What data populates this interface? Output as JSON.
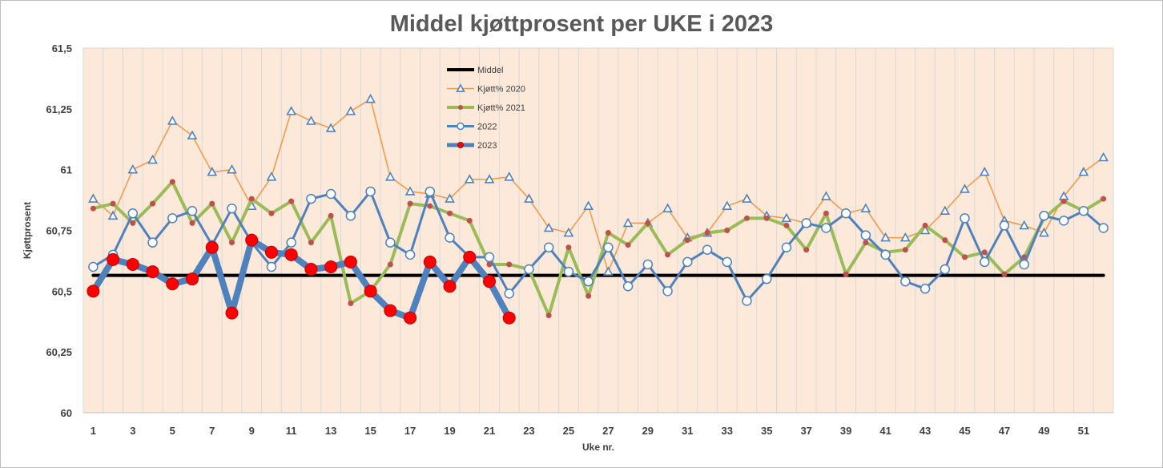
{
  "chart_data": {
    "type": "line",
    "title": "Middel kjøttprosent per UKE i 2023",
    "xlabel": "Uke nr.",
    "ylabel": "Kjøttprosent",
    "ylim": [
      60,
      61.5
    ],
    "xlim": [
      1,
      52
    ],
    "y_ticks": [
      "60",
      "60,25",
      "60,5",
      "60,75",
      "61",
      "61,25",
      "61,5"
    ],
    "y_tick_values": [
      60,
      60.25,
      60.5,
      60.75,
      61,
      61.25,
      61.5
    ],
    "x_ticks": [
      "1",
      "3",
      "5",
      "7",
      "9",
      "11",
      "13",
      "15",
      "17",
      "19",
      "21",
      "23",
      "25",
      "27",
      "29",
      "31",
      "33",
      "35",
      "37",
      "39",
      "41",
      "43",
      "45",
      "47",
      "49",
      "51"
    ],
    "x_tick_values": [
      1,
      3,
      5,
      7,
      9,
      11,
      13,
      15,
      17,
      19,
      21,
      23,
      25,
      27,
      29,
      31,
      33,
      35,
      37,
      39,
      41,
      43,
      45,
      47,
      49,
      51
    ],
    "grid": "vertical",
    "legend_position": "top-center",
    "plot_background": "#fde9d9",
    "series": [
      {
        "name": "Middel",
        "style": "middel",
        "color": "#000000",
        "x": [
          1,
          52
        ],
        "values": [
          60.565,
          60.565
        ]
      },
      {
        "name": "Kjøtt% 2020",
        "style": "s2020",
        "color": "#f79646",
        "marker_color": "#4f81bd",
        "x": [
          1,
          2,
          3,
          4,
          5,
          6,
          7,
          8,
          9,
          10,
          11,
          12,
          13,
          14,
          15,
          16,
          17,
          18,
          19,
          20,
          21,
          22,
          23,
          24,
          25,
          26,
          27,
          28,
          29,
          30,
          31,
          32,
          33,
          34,
          35,
          36,
          37,
          38,
          39,
          40,
          41,
          42,
          43,
          44,
          45,
          46,
          47,
          48,
          49,
          50,
          51,
          52
        ],
        "values": [
          60.88,
          60.81,
          61.0,
          61.04,
          61.2,
          61.14,
          60.99,
          61.0,
          60.85,
          60.97,
          61.24,
          61.2,
          61.17,
          61.24,
          61.29,
          60.97,
          60.91,
          60.9,
          60.88,
          60.96,
          60.96,
          60.97,
          60.88,
          60.76,
          60.74,
          60.85,
          60.58,
          60.78,
          60.78,
          60.84,
          60.72,
          60.74,
          60.85,
          60.88,
          60.81,
          60.8,
          60.78,
          60.89,
          60.82,
          60.84,
          60.72,
          60.72,
          60.75,
          60.83,
          60.92,
          60.99,
          60.79,
          60.77,
          60.74,
          60.89,
          60.99,
          61.05
        ]
      },
      {
        "name": "Kjøtt% 2021",
        "style": "s2021",
        "color": "#9bbb59",
        "marker_color": "#c0504d",
        "x": [
          1,
          2,
          3,
          4,
          5,
          6,
          7,
          8,
          9,
          10,
          11,
          12,
          13,
          14,
          15,
          16,
          17,
          18,
          19,
          20,
          21,
          22,
          23,
          24,
          25,
          26,
          27,
          28,
          29,
          30,
          31,
          32,
          33,
          34,
          35,
          36,
          37,
          38,
          39,
          40,
          41,
          42,
          43,
          44,
          45,
          46,
          47,
          48,
          49,
          50,
          51,
          52
        ],
        "values": [
          60.84,
          60.86,
          60.78,
          60.86,
          60.95,
          60.78,
          60.86,
          60.7,
          60.88,
          60.82,
          60.87,
          60.7,
          60.81,
          60.45,
          60.5,
          60.61,
          60.86,
          60.85,
          60.82,
          60.79,
          60.61,
          60.61,
          60.59,
          60.4,
          60.68,
          60.48,
          60.74,
          60.69,
          60.78,
          60.65,
          60.71,
          60.74,
          60.75,
          60.8,
          60.8,
          60.77,
          60.67,
          60.82,
          60.57,
          60.7,
          60.66,
          60.67,
          60.77,
          60.71,
          60.64,
          60.66,
          60.57,
          60.64,
          60.8,
          60.87,
          60.83,
          60.88
        ]
      },
      {
        "name": "2022",
        "style": "s2022",
        "color": "#4f81bd",
        "marker_color": "#ffffff",
        "x": [
          1,
          2,
          3,
          4,
          5,
          6,
          7,
          8,
          9,
          10,
          11,
          12,
          13,
          14,
          15,
          16,
          17,
          18,
          19,
          20,
          21,
          22,
          23,
          24,
          25,
          26,
          27,
          28,
          29,
          30,
          31,
          32,
          33,
          34,
          35,
          36,
          37,
          38,
          39,
          40,
          41,
          42,
          43,
          44,
          45,
          46,
          47,
          48,
          49,
          50,
          51,
          52
        ],
        "values": [
          60.6,
          60.65,
          60.82,
          60.7,
          60.8,
          60.83,
          60.69,
          60.84,
          60.7,
          60.6,
          60.7,
          60.88,
          60.9,
          60.81,
          60.91,
          60.7,
          60.65,
          60.91,
          60.72,
          60.64,
          60.64,
          60.49,
          60.59,
          60.68,
          60.58,
          60.54,
          60.68,
          60.52,
          60.61,
          60.5,
          60.62,
          60.67,
          60.62,
          60.46,
          60.55,
          60.68,
          60.78,
          60.76,
          60.82,
          60.73,
          60.65,
          60.54,
          60.51,
          60.59,
          60.8,
          60.62,
          60.77,
          60.61,
          60.81,
          60.79,
          60.83,
          60.76
        ]
      },
      {
        "name": "2023",
        "style": "s2023",
        "color": "#4f81bd",
        "marker_color": "#ff0000",
        "x": [
          1,
          2,
          3,
          4,
          5,
          6,
          7,
          8,
          9,
          10,
          11,
          12,
          13,
          14,
          15,
          16,
          17,
          18,
          19,
          20,
          21,
          22
        ],
        "values": [
          60.5,
          60.63,
          60.61,
          60.58,
          60.53,
          60.55,
          60.68,
          60.41,
          60.71,
          60.66,
          60.65,
          60.59,
          60.6,
          60.62,
          60.5,
          60.42,
          60.39,
          60.62,
          60.52,
          60.64,
          60.54,
          60.39
        ]
      }
    ]
  }
}
